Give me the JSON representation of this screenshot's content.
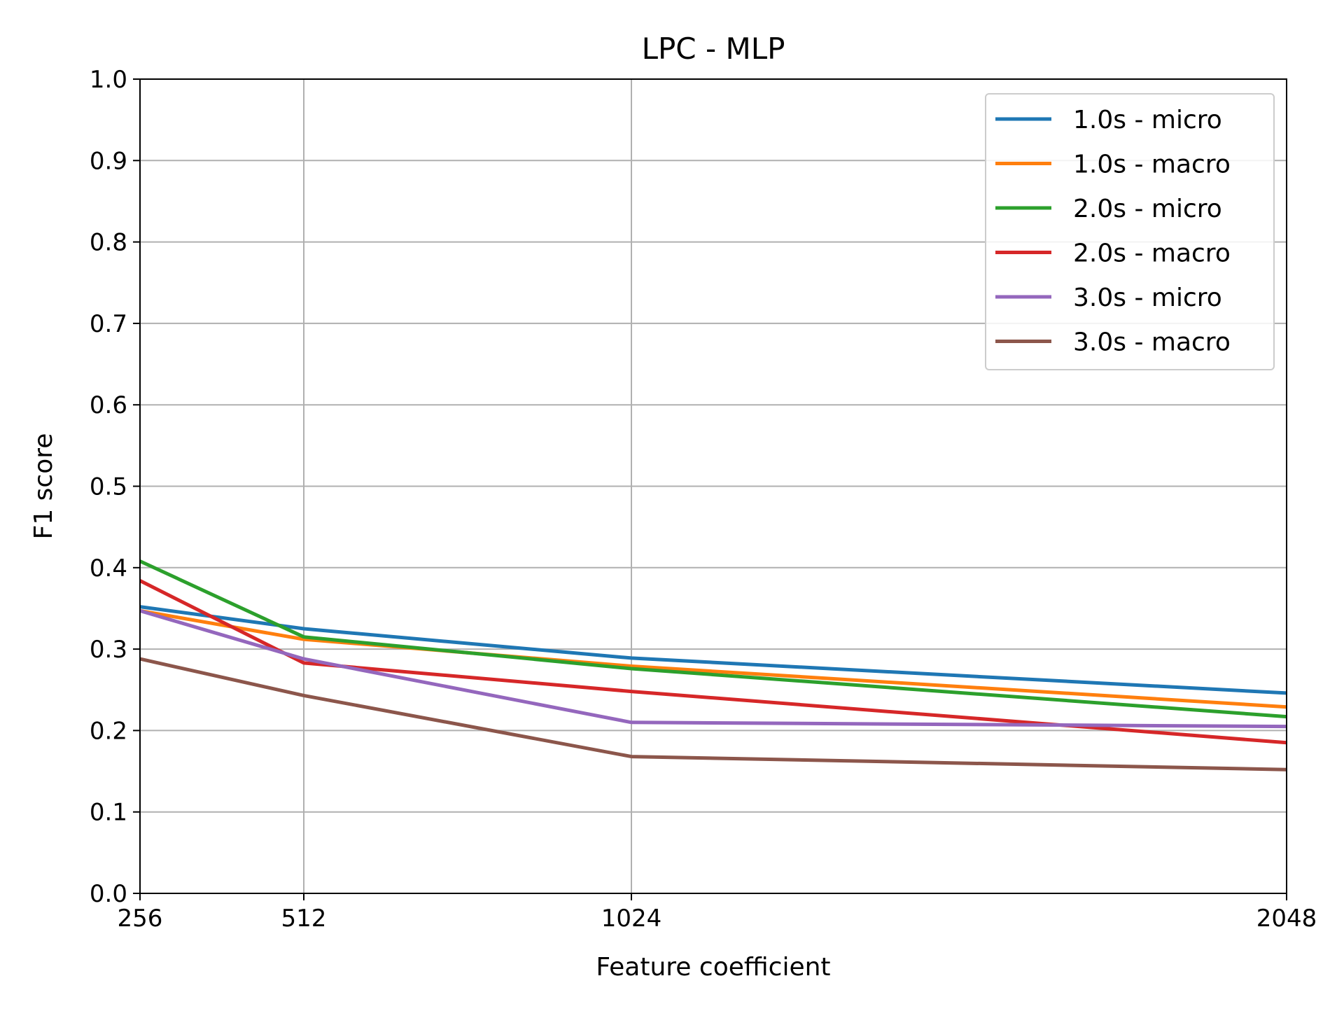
{
  "chart_data": {
    "type": "line",
    "title": "LPC - MLP",
    "xlabel": "Feature coefficient",
    "ylabel": "F1 score",
    "x": [
      256,
      512,
      1024,
      2048
    ],
    "x_tick_labels": [
      "256",
      "512",
      "1024",
      "2048"
    ],
    "xlim": [
      256,
      2048
    ],
    "ylim": [
      0.0,
      1.0
    ],
    "y_ticks": [
      0.0,
      0.1,
      0.2,
      0.3,
      0.4,
      0.5,
      0.6,
      0.7,
      0.8,
      0.9,
      1.0
    ],
    "y_tick_labels": [
      "0.0",
      "0.1",
      "0.2",
      "0.3",
      "0.4",
      "0.5",
      "0.6",
      "0.7",
      "0.8",
      "0.9",
      "1.0"
    ],
    "grid": true,
    "legend_position": "top-right",
    "series": [
      {
        "name": "1.0s - micro",
        "color": "#1f77b4",
        "values": [
          0.352,
          0.325,
          0.289,
          0.246
        ]
      },
      {
        "name": "1.0s - macro",
        "color": "#ff7f0e",
        "values": [
          0.347,
          0.312,
          0.279,
          0.229
        ]
      },
      {
        "name": "2.0s - micro",
        "color": "#2ca02c",
        "values": [
          0.408,
          0.315,
          0.276,
          0.217
        ]
      },
      {
        "name": "2.0s - macro",
        "color": "#d62728",
        "values": [
          0.384,
          0.283,
          0.248,
          0.185
        ]
      },
      {
        "name": "3.0s - micro",
        "color": "#9467bd",
        "values": [
          0.347,
          0.288,
          0.21,
          0.205
        ]
      },
      {
        "name": "3.0s - macro",
        "color": "#8c564b",
        "values": [
          0.288,
          0.243,
          0.168,
          0.152
        ]
      }
    ]
  }
}
